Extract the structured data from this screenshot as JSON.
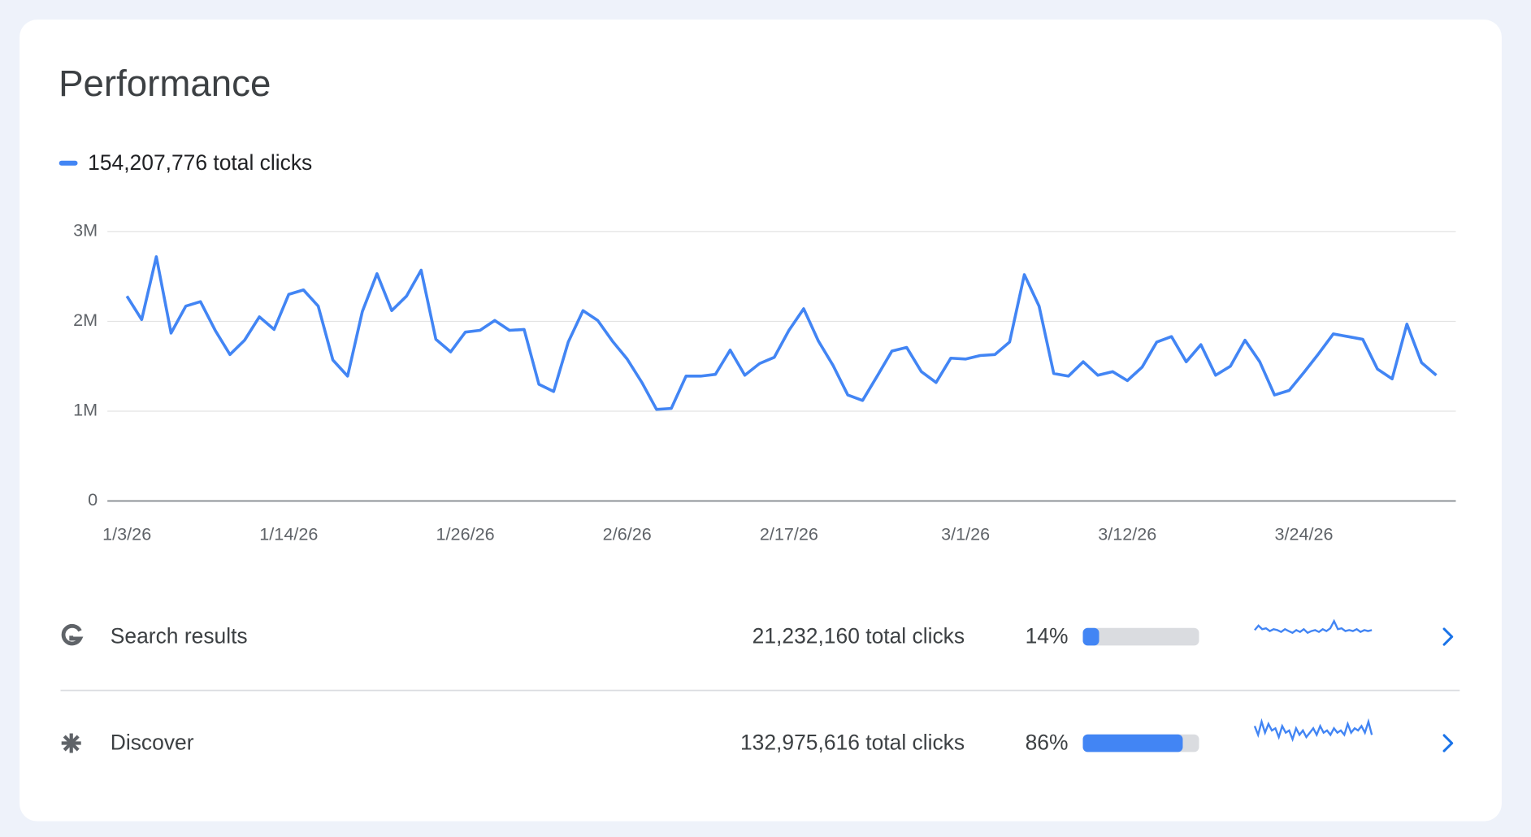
{
  "header": {
    "title": "Performance"
  },
  "chart_data": {
    "type": "line",
    "categories": [
      "1/3/26",
      null,
      null,
      null,
      null,
      null,
      null,
      null,
      null,
      null,
      null,
      "1/14/26",
      null,
      null,
      null,
      null,
      null,
      null,
      null,
      null,
      null,
      null,
      null,
      "1/26/26",
      null,
      null,
      null,
      null,
      null,
      null,
      null,
      null,
      null,
      null,
      "2/6/26",
      null,
      null,
      null,
      null,
      null,
      null,
      null,
      null,
      null,
      null,
      "2/17/26",
      null,
      null,
      null,
      null,
      null,
      null,
      null,
      null,
      null,
      null,
      null,
      "3/1/26",
      null,
      null,
      null,
      null,
      null,
      null,
      null,
      null,
      null,
      null,
      "3/12/26",
      null,
      null,
      null,
      null,
      null,
      null,
      null,
      null,
      null,
      null,
      null,
      "3/24/26",
      null,
      null,
      null,
      null,
      null,
      null,
      null,
      null,
      null
    ],
    "series": [
      {
        "name": "154,207,776 total clicks",
        "color": "#4285f4",
        "values": [
          2280000,
          2020000,
          2720000,
          1870000,
          2170000,
          2220000,
          1900000,
          1630000,
          1790000,
          2050000,
          1910000,
          2300000,
          2350000,
          2170000,
          1570000,
          1390000,
          2110000,
          2530000,
          2120000,
          2280000,
          2570000,
          1800000,
          1660000,
          1880000,
          1900000,
          2010000,
          1900000,
          1910000,
          1300000,
          1220000,
          1770000,
          2120000,
          2010000,
          1780000,
          1580000,
          1320000,
          1020000,
          1030000,
          1390000,
          1390000,
          1410000,
          1680000,
          1400000,
          1530000,
          1600000,
          1900000,
          2140000,
          1780000,
          1510000,
          1180000,
          1120000,
          1390000,
          1670000,
          1710000,
          1440000,
          1320000,
          1590000,
          1580000,
          1620000,
          1630000,
          1770000,
          2520000,
          2170000,
          1420000,
          1390000,
          1550000,
          1400000,
          1440000,
          1340000,
          1490000,
          1770000,
          1830000,
          1550000,
          1740000,
          1400000,
          1500000,
          1790000,
          1550000,
          1180000,
          1230000,
          1430000,
          1640000,
          1860000,
          1830000,
          1800000,
          1470000,
          1360000,
          1970000,
          1540000,
          1400000
        ]
      }
    ],
    "ylim": [
      0,
      3000000
    ],
    "yticks": [
      0,
      {
        "value": 1000000,
        "label": "1M"
      },
      {
        "value": 2000000,
        "label": "2M"
      },
      {
        "value": 3000000,
        "label": "3M"
      }
    ],
    "grid": true
  },
  "rows": [
    {
      "name": "Search results",
      "clicks_label": "21,232,160 total clicks",
      "share": 14,
      "share_label": "14%",
      "icon": "google",
      "trend": [
        0.45,
        0.7,
        0.5,
        0.55,
        0.4,
        0.5,
        0.45,
        0.35,
        0.5,
        0.4,
        0.3,
        0.45,
        0.35,
        0.5,
        0.3,
        0.4,
        0.45,
        0.35,
        0.5,
        0.4,
        0.55,
        0.95,
        0.5,
        0.55,
        0.4,
        0.45,
        0.4,
        0.5,
        0.35,
        0.45,
        0.4,
        0.45
      ]
    },
    {
      "name": "Discover",
      "clicks_label": "132,975,616 total clicks",
      "share": 86,
      "share_label": "86%",
      "icon": "asterisk",
      "trend": [
        0.7,
        0.3,
        0.9,
        0.4,
        0.8,
        0.5,
        0.6,
        0.2,
        0.7,
        0.4,
        0.5,
        0.1,
        0.6,
        0.3,
        0.5,
        0.2,
        0.4,
        0.6,
        0.3,
        0.7,
        0.4,
        0.5,
        0.3,
        0.6,
        0.4,
        0.5,
        0.3,
        0.8,
        0.4,
        0.6,
        0.5,
        0.7,
        0.4,
        0.9,
        0.3
      ]
    }
  ]
}
